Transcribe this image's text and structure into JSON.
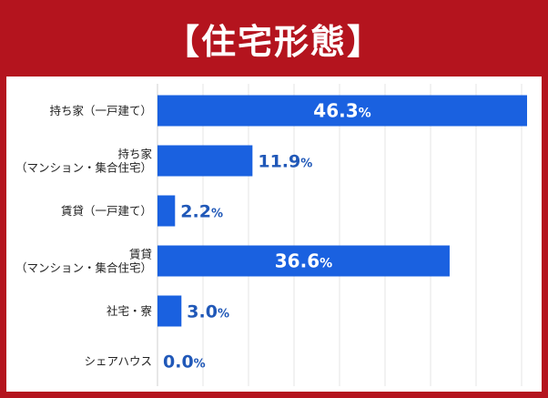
{
  "chart_data": {
    "type": "bar",
    "orientation": "horizontal",
    "title": "【住宅形態】",
    "categories": [
      [
        "持ち家（一戸建て）"
      ],
      [
        "持ち家",
        "（マンション・集合住宅）"
      ],
      [
        "賃貸（一戸建て）"
      ],
      [
        "賃貸",
        "（マンション・集合住宅）"
      ],
      [
        "社宅・寮"
      ],
      [
        "シェアハウス"
      ]
    ],
    "values": [
      46.3,
      11.9,
      2.2,
      36.6,
      3.0,
      0.0
    ],
    "value_labels": [
      "46.3",
      "11.9",
      "2.2",
      "36.6",
      "3.0",
      "0.0"
    ],
    "unit": "%",
    "xlim": [
      0,
      46.3
    ],
    "grid": true,
    "colors": {
      "bar": "#1a61e0",
      "label_on_bar": "#ffffff",
      "label_outside": "#2058b8",
      "title_band": "#b4141e",
      "grid": "#e4e4e4"
    }
  }
}
